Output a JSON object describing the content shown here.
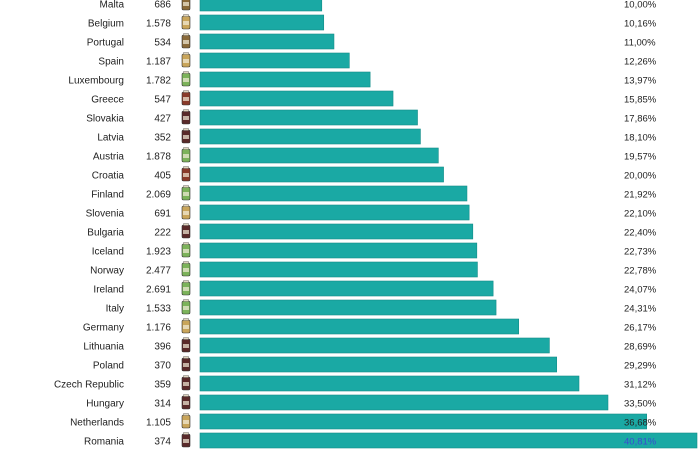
{
  "chart_data": {
    "type": "bar",
    "orientation": "horizontal",
    "title": "",
    "xlabel": "",
    "ylabel": "",
    "xlim": [
      0,
      40.81
    ],
    "grid": false,
    "legend": "none",
    "rows": [
      {
        "country": "Malta",
        "count": "686",
        "pct": 10.0,
        "pct_label": "10,00%",
        "icon_color": "#8a6a3a"
      },
      {
        "country": "Belgium",
        "count": "1.578",
        "pct": 10.16,
        "pct_label": "10,16%",
        "icon_color": "#c9a55a"
      },
      {
        "country": "Portugal",
        "count": "534",
        "pct": 11.0,
        "pct_label": "11,00%",
        "icon_color": "#8a6a3a"
      },
      {
        "country": "Spain",
        "count": "1.187",
        "pct": 12.26,
        "pct_label": "12,26%",
        "icon_color": "#c9a55a"
      },
      {
        "country": "Luxembourg",
        "count": "1.782",
        "pct": 13.97,
        "pct_label": "13,97%",
        "icon_color": "#7cb35a"
      },
      {
        "country": "Greece",
        "count": "547",
        "pct": 15.85,
        "pct_label": "15,85%",
        "icon_color": "#8a3a2a"
      },
      {
        "country": "Slovakia",
        "count": "427",
        "pct": 17.86,
        "pct_label": "17,86%",
        "icon_color": "#5a2a2a"
      },
      {
        "country": "Latvia",
        "count": "352",
        "pct": 18.1,
        "pct_label": "18,10%",
        "icon_color": "#5a2a2a"
      },
      {
        "country": "Austria",
        "count": "1.878",
        "pct": 19.57,
        "pct_label": "19,57%",
        "icon_color": "#7cb35a"
      },
      {
        "country": "Croatia",
        "count": "405",
        "pct": 20.0,
        "pct_label": "20,00%",
        "icon_color": "#8a3a2a"
      },
      {
        "country": "Finland",
        "count": "2.069",
        "pct": 21.92,
        "pct_label": "21,92%",
        "icon_color": "#7cb35a"
      },
      {
        "country": "Slovenia",
        "count": "691",
        "pct": 22.1,
        "pct_label": "22,10%",
        "icon_color": "#c9a55a"
      },
      {
        "country": "Bulgaria",
        "count": "222",
        "pct": 22.4,
        "pct_label": "22,40%",
        "icon_color": "#5a2a2a"
      },
      {
        "country": "Iceland",
        "count": "1.923",
        "pct": 22.73,
        "pct_label": "22,73%",
        "icon_color": "#7cb35a"
      },
      {
        "country": "Norway",
        "count": "2.477",
        "pct": 22.78,
        "pct_label": "22,78%",
        "icon_color": "#7cb35a"
      },
      {
        "country": "Ireland",
        "count": "2.691",
        "pct": 24.07,
        "pct_label": "24,07%",
        "icon_color": "#7cb35a"
      },
      {
        "country": "Italy",
        "count": "1.533",
        "pct": 24.31,
        "pct_label": "24,31%",
        "icon_color": "#7cb35a"
      },
      {
        "country": "Germany",
        "count": "1.176",
        "pct": 26.17,
        "pct_label": "26,17%",
        "icon_color": "#c9a55a"
      },
      {
        "country": "Lithuania",
        "count": "396",
        "pct": 28.69,
        "pct_label": "28,69%",
        "icon_color": "#5a2a2a"
      },
      {
        "country": "Poland",
        "count": "370",
        "pct": 29.29,
        "pct_label": "29,29%",
        "icon_color": "#5a2a2a"
      },
      {
        "country": "Czech Republic",
        "count": "359",
        "pct": 31.12,
        "pct_label": "31,12%",
        "icon_color": "#5a2a2a"
      },
      {
        "country": "Hungary",
        "count": "314",
        "pct": 33.5,
        "pct_label": "33,50%",
        "icon_color": "#5a2a2a"
      },
      {
        "country": "Netherlands",
        "count": "1.105",
        "pct": 36.68,
        "pct_label": "36,68%",
        "icon_color": "#c9a55a"
      },
      {
        "country": "Romania",
        "count": "374",
        "pct": 40.81,
        "pct_label": "40,81%",
        "icon_color": "#5a2a2a"
      }
    ],
    "colors": {
      "bar": "#1aa9a4",
      "bar_edge": "#138c88",
      "text": "#222222",
      "last_label": "#3a4ad0",
      "separator": "#dddddd"
    }
  }
}
